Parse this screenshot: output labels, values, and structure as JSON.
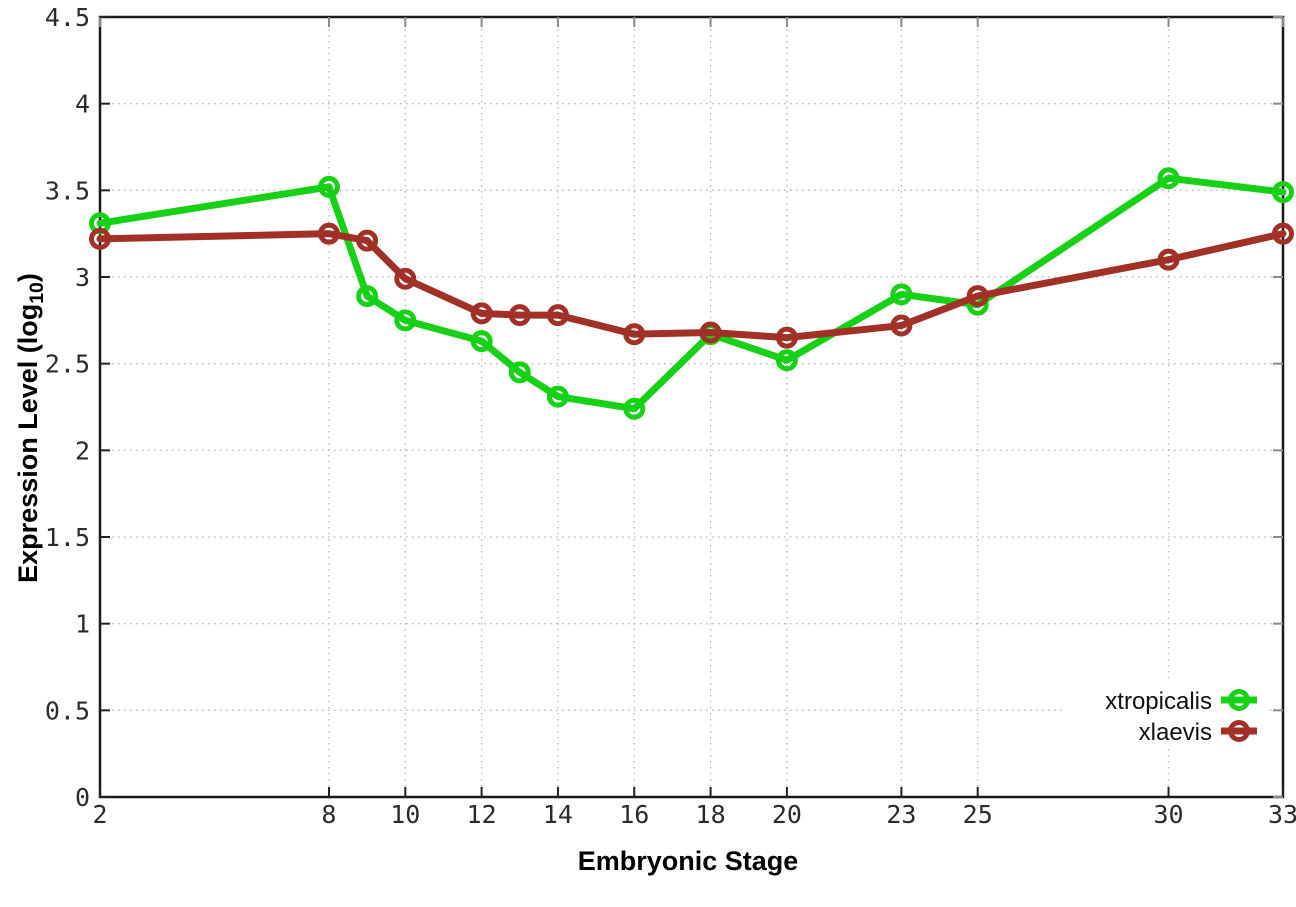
{
  "figure": {
    "xlabel": "Embryonic Stage",
    "ylabel_main": "Expression Level (log",
    "ylabel_sub": "10",
    "ylabel_close": ")"
  },
  "chart_data": {
    "type": "line",
    "title": "",
    "xlabel": "Embryonic Stage",
    "ylabel": "Expression Level (log10)",
    "x": [
      2,
      8,
      9,
      10,
      12,
      13,
      14,
      16,
      18,
      20,
      23,
      25,
      30,
      33
    ],
    "series": [
      {
        "name": "xtropicalis",
        "color": "#17d117",
        "values": [
          3.31,
          3.52,
          2.89,
          2.75,
          2.63,
          2.45,
          2.31,
          2.24,
          2.67,
          2.52,
          2.9,
          2.84,
          3.57,
          3.49
        ]
      },
      {
        "name": "xlaevis",
        "color": "#a13026",
        "values": [
          3.22,
          3.25,
          3.21,
          2.99,
          2.79,
          2.78,
          2.78,
          2.67,
          2.68,
          2.65,
          2.72,
          2.89,
          3.1,
          3.25
        ]
      }
    ],
    "xticks": [
      2,
      8,
      10,
      12,
      14,
      16,
      18,
      20,
      23,
      25,
      30,
      33
    ],
    "yticks": [
      0,
      0.5,
      1,
      1.5,
      2,
      2.5,
      3,
      3.5,
      4,
      4.5
    ],
    "xlim": [
      2,
      33
    ],
    "ylim": [
      0,
      4.5
    ],
    "grid": true,
    "legend_position": "bottom-right",
    "marker": "open-circle",
    "grid_color": "#b5b5b5",
    "border_color": "#1a1a1a"
  }
}
